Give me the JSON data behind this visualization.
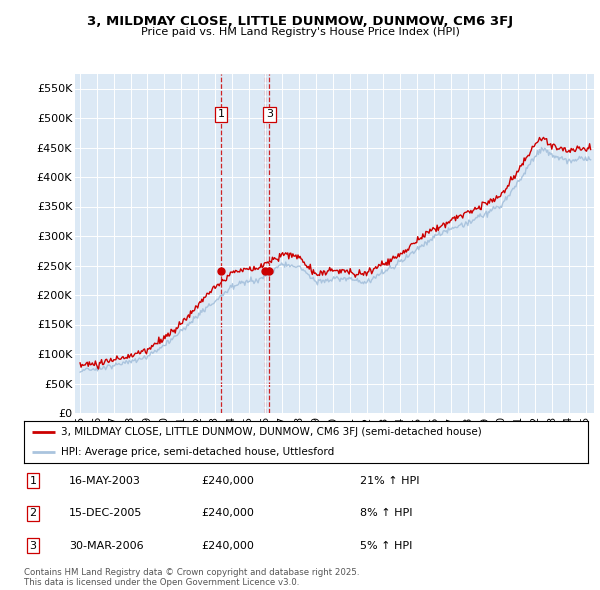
{
  "title": "3, MILDMAY CLOSE, LITTLE DUNMOW, DUNMOW, CM6 3FJ",
  "subtitle": "Price paid vs. HM Land Registry's House Price Index (HPI)",
  "background_color": "#dce9f5",
  "plot_bg_color": "#dce9f5",
  "red_line_color": "#cc0000",
  "blue_line_color": "#aac4de",
  "ylim": [
    0,
    575000
  ],
  "yticks": [
    0,
    50000,
    100000,
    150000,
    200000,
    250000,
    300000,
    350000,
    400000,
    450000,
    500000,
    550000
  ],
  "ytick_labels": [
    "£0",
    "£50K",
    "£100K",
    "£150K",
    "£200K",
    "£250K",
    "£300K",
    "£350K",
    "£400K",
    "£450K",
    "£500K",
    "£550K"
  ],
  "xlim_start": 1994.7,
  "xlim_end": 2025.5,
  "transactions": [
    {
      "num": 1,
      "date": "16-MAY-2003",
      "price": 240000,
      "hpi_change": "21% ↑ HPI",
      "year": 2003.37
    },
    {
      "num": 2,
      "date": "15-DEC-2005",
      "price": 240000,
      "hpi_change": "8% ↑ HPI",
      "year": 2005.96
    },
    {
      "num": 3,
      "date": "30-MAR-2006",
      "price": 240000,
      "hpi_change": "5% ↑ HPI",
      "year": 2006.24
    }
  ],
  "legend_line1": "3, MILDMAY CLOSE, LITTLE DUNMOW, DUNMOW, CM6 3FJ (semi-detached house)",
  "legend_line2": "HPI: Average price, semi-detached house, Uttlesford",
  "footnote": "Contains HM Land Registry data © Crown copyright and database right 2025.\nThis data is licensed under the Open Government Licence v3.0.",
  "table_rows": [
    [
      "1",
      "16-MAY-2003",
      "£240,000",
      "21% ↑ HPI"
    ],
    [
      "2",
      "15-DEC-2005",
      "£240,000",
      "8% ↑ HPI"
    ],
    [
      "3",
      "30-MAR-2006",
      "£240,000",
      "5% ↑ HPI"
    ]
  ]
}
